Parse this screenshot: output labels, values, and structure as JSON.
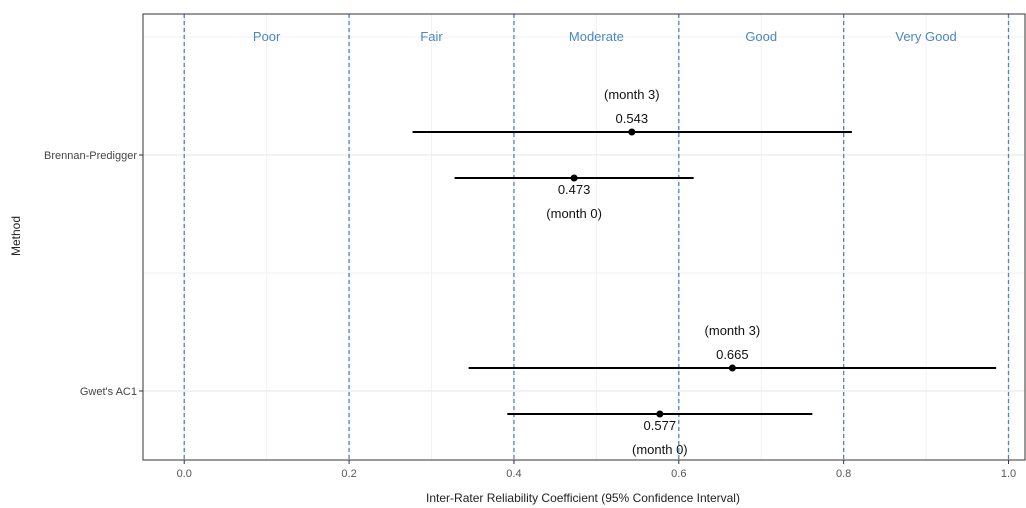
{
  "chart_data": {
    "type": "scatter",
    "subtype": "forest-plot-horizontal-error-bars",
    "title": "",
    "xlabel": "Inter-Rater Reliability Coefficient (95% Confidence Interval)",
    "ylabel": "Method",
    "xlim": [
      -0.05,
      1.02
    ],
    "x_ticks": [
      0.0,
      0.2,
      0.4,
      0.6,
      0.8,
      1.0
    ],
    "x_tick_labels": [
      "0.0",
      "0.2",
      "0.4",
      "0.6",
      "0.8",
      "1.0"
    ],
    "reference_lines": [
      0.0,
      0.2,
      0.4,
      0.6,
      0.8,
      1.0
    ],
    "reference_line_color": "#4a86c8",
    "bands": [
      {
        "label": "Poor",
        "x": 0.1
      },
      {
        "label": "Fair",
        "x": 0.3
      },
      {
        "label": "Moderate",
        "x": 0.5
      },
      {
        "label": "Good",
        "x": 0.7
      },
      {
        "label": "Very Good",
        "x": 0.9
      }
    ],
    "categories": [
      "Brennan-Predigger",
      "Gwet's AC1"
    ],
    "grid": true,
    "points": [
      {
        "method": "Brennan-Predigger",
        "value": 0.543,
        "label": "0.543",
        "ci_low": 0.277,
        "ci_high": 0.81,
        "timepoint": "(month 3)",
        "position": "upper"
      },
      {
        "method": "Brennan-Predigger",
        "value": 0.473,
        "label": "0.473",
        "ci_low": 0.328,
        "ci_high": 0.618,
        "timepoint": "(month 0)",
        "position": "lower"
      },
      {
        "method": "Gwet's AC1",
        "value": 0.665,
        "label": "0.665",
        "ci_low": 0.345,
        "ci_high": 0.985,
        "timepoint": "(month 3)",
        "position": "upper"
      },
      {
        "method": "Gwet's AC1",
        "value": 0.577,
        "label": "0.577",
        "ci_low": 0.392,
        "ci_high": 0.762,
        "timepoint": "(month 0)",
        "position": "lower"
      }
    ]
  }
}
